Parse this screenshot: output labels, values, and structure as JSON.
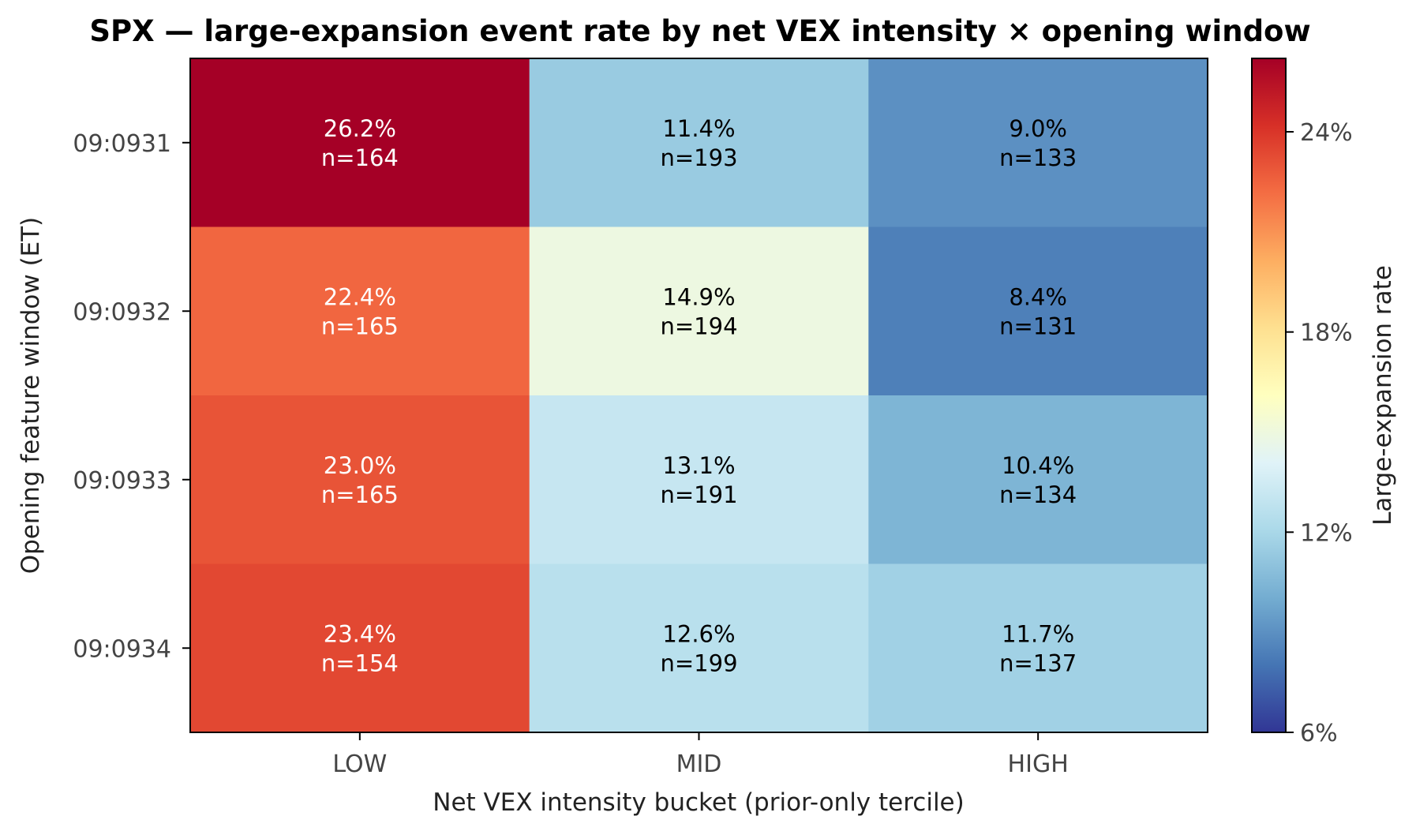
{
  "chart_data": {
    "type": "heatmap",
    "title": "SPX — large-expansion event rate by net VEX intensity × opening window",
    "xlabel": "Net VEX intensity bucket (prior-only tercile)",
    "ylabel": "Opening feature window (ET)",
    "x_categories": [
      "LOW",
      "MID",
      "HIGH"
    ],
    "y_categories": [
      "09:0931",
      "09:0932",
      "09:0933",
      "09:0934"
    ],
    "rates_pct": [
      [
        26.2,
        11.4,
        9.0
      ],
      [
        22.4,
        14.9,
        8.4
      ],
      [
        23.0,
        13.1,
        10.4
      ],
      [
        23.4,
        12.6,
        11.7
      ]
    ],
    "cell_labels": [
      [
        {
          "rate": "26.2%",
          "n": "n=164"
        },
        {
          "rate": "11.4%",
          "n": "n=193"
        },
        {
          "rate": "9.0%",
          "n": "n=133"
        }
      ],
      [
        {
          "rate": "22.4%",
          "n": "n=165"
        },
        {
          "rate": "14.9%",
          "n": "n=194"
        },
        {
          "rate": "8.4%",
          "n": "n=131"
        }
      ],
      [
        {
          "rate": "23.0%",
          "n": "n=165"
        },
        {
          "rate": "13.1%",
          "n": "n=191"
        },
        {
          "rate": "10.4%",
          "n": "n=134"
        }
      ],
      [
        {
          "rate": "23.4%",
          "n": "n=154"
        },
        {
          "rate": "12.6%",
          "n": "n=199"
        },
        {
          "rate": "11.7%",
          "n": "n=137"
        }
      ]
    ],
    "colorbar": {
      "label": "Large-expansion rate",
      "range_pct": [
        6,
        26.2
      ],
      "ticks": [
        "6%",
        "12%",
        "18%",
        "24%"
      ],
      "tick_values": [
        6,
        12,
        18,
        24
      ],
      "colormap": "RdYlBu_r",
      "colormap_stops": [
        "#313695",
        "#4575b4",
        "#74add1",
        "#abd9e9",
        "#e0f3f8",
        "#ffffbf",
        "#fee090",
        "#fdae61",
        "#f46d43",
        "#d73027",
        "#a50026"
      ]
    },
    "grid": false
  }
}
